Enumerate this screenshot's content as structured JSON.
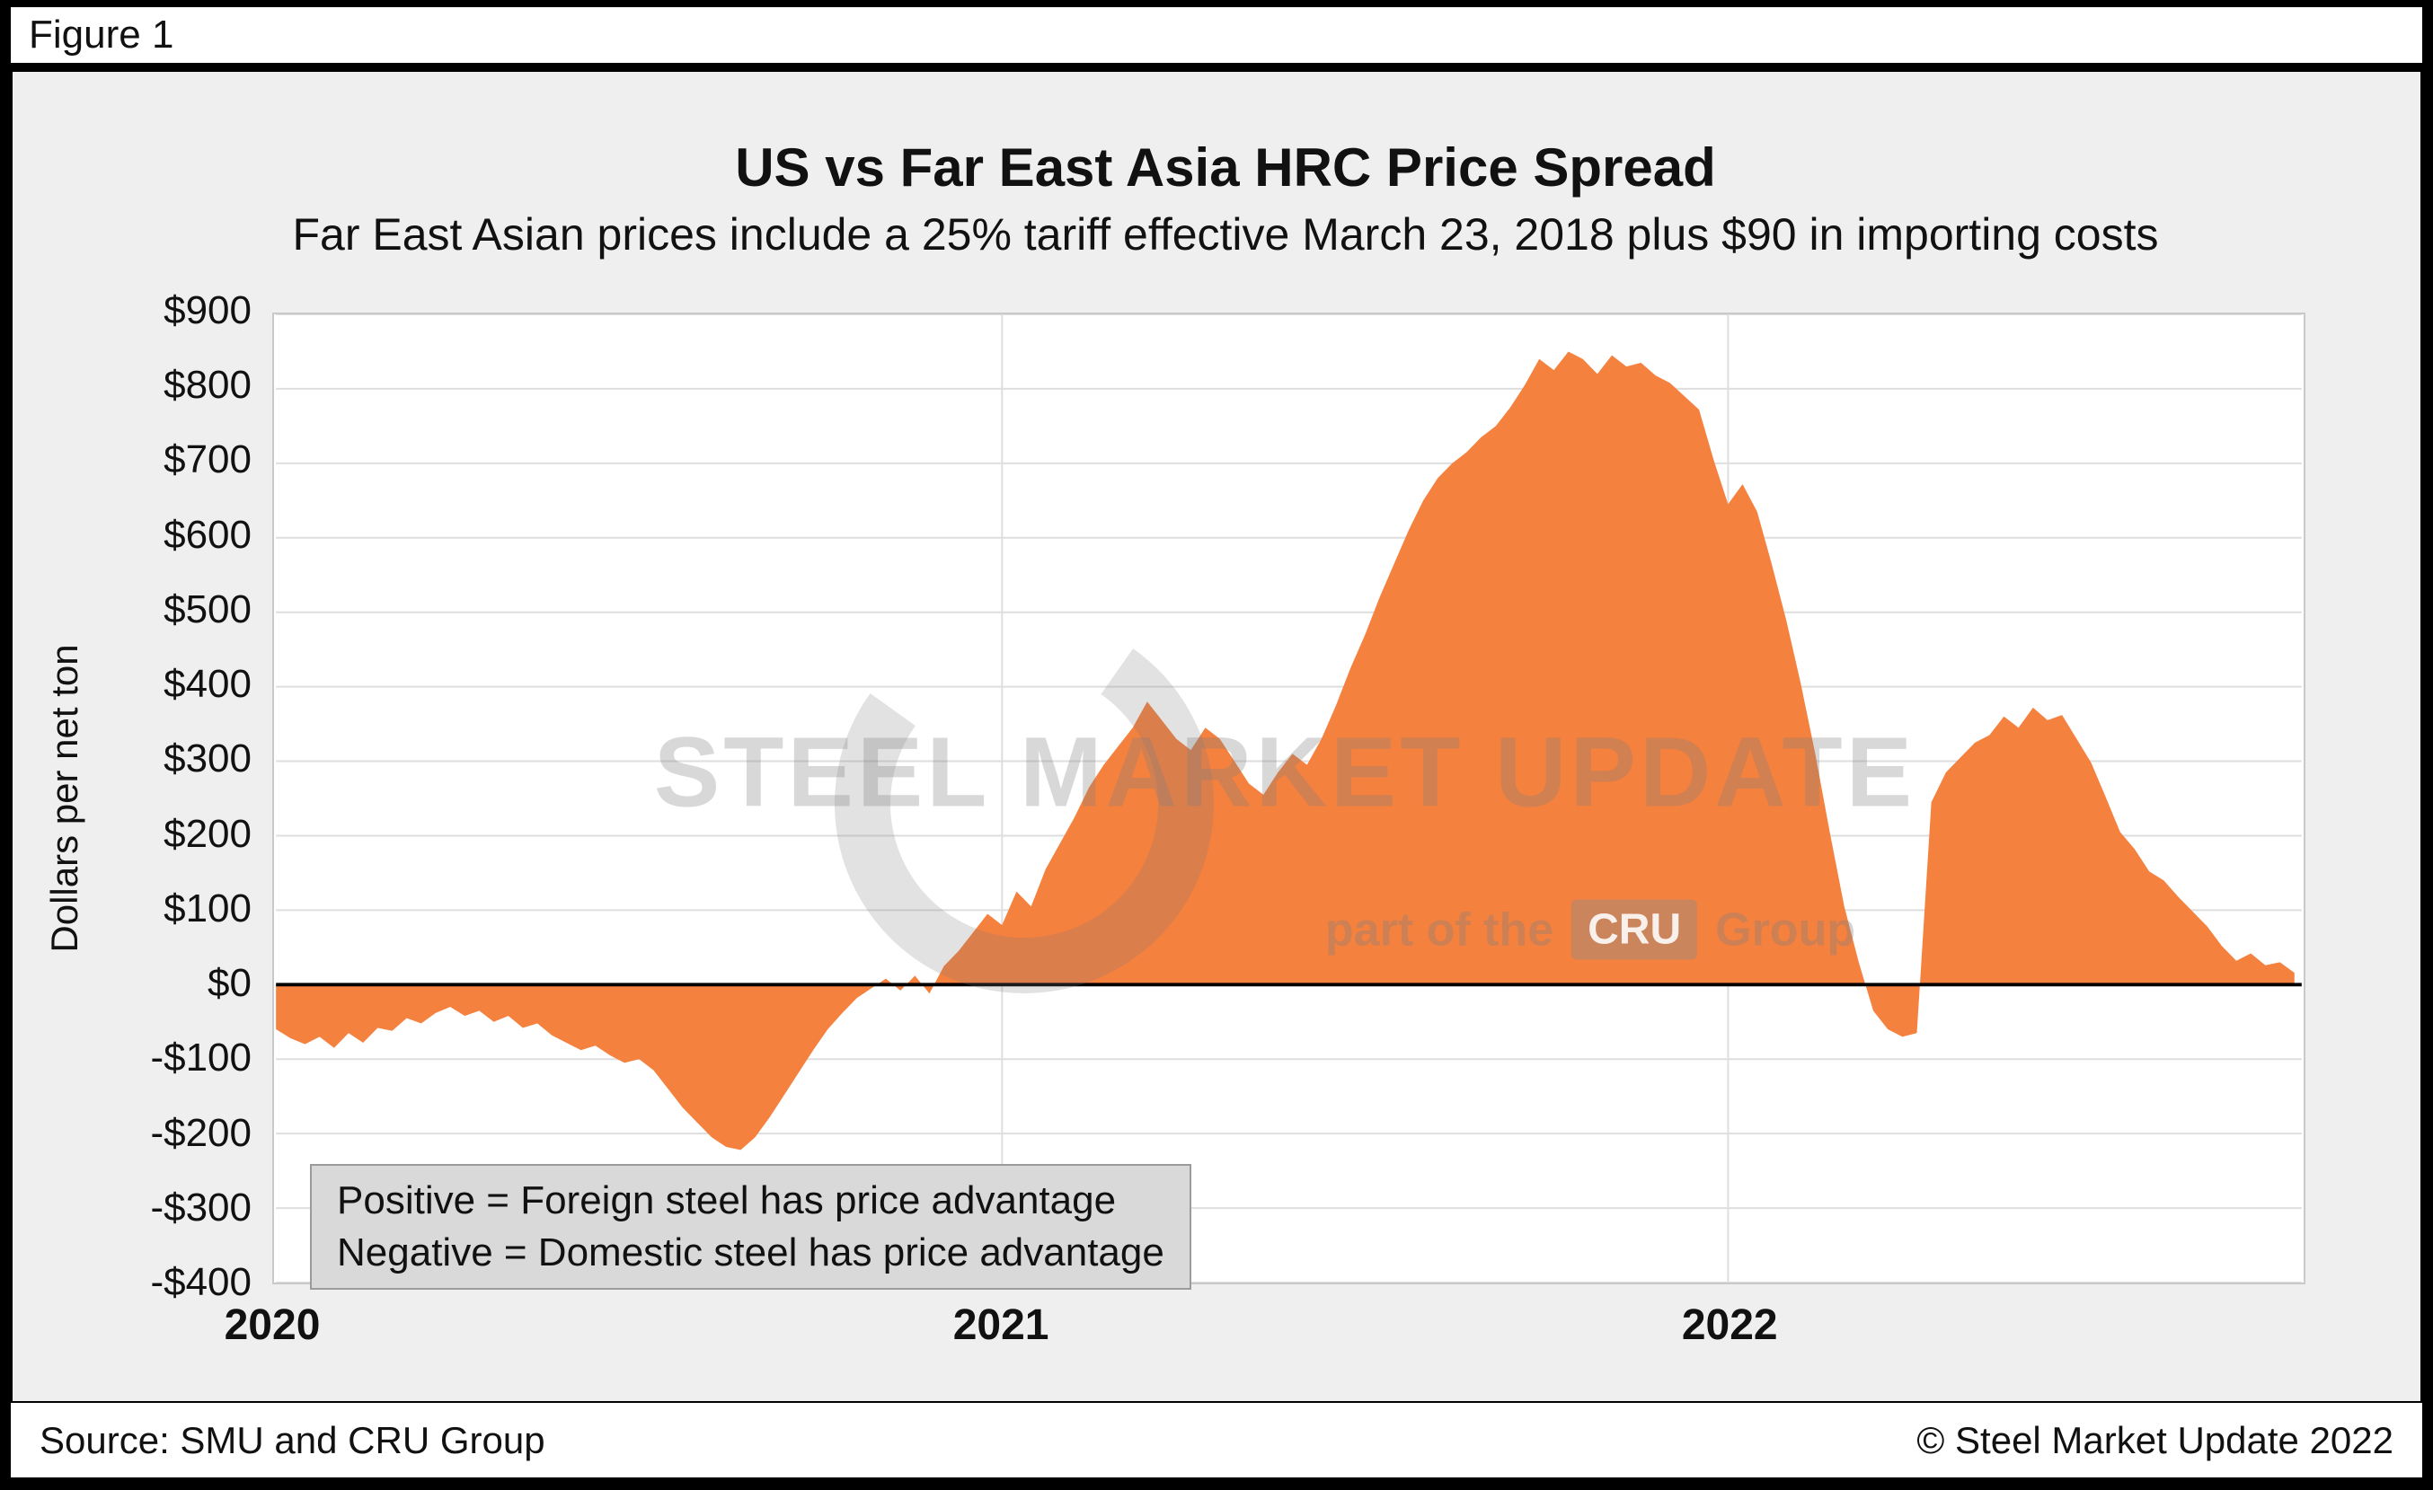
{
  "figure_label": "Figure 1",
  "chart_data": {
    "type": "area",
    "title": "US vs Far East Asia HRC Price Spread",
    "subtitle": "Far East Asian prices include a 25% tariff effective March 23, 2018 plus $90 in importing costs",
    "ylabel": "Dollars per net ton",
    "xlim": [
      2020.0,
      2022.79
    ],
    "ylim": [
      -400,
      900
    ],
    "grid": true,
    "series_color": "#F5813F",
    "grid_color": "#DEDEDE",
    "zero_line_color": "#000000",
    "plot_bg": "#FFFFFF",
    "panel_bg": "#EFEFEF",
    "y_ticks": [
      {
        "label": "$900",
        "value": 900
      },
      {
        "label": "$800",
        "value": 800
      },
      {
        "label": "$700",
        "value": 700
      },
      {
        "label": "$600",
        "value": 600
      },
      {
        "label": "$500",
        "value": 500
      },
      {
        "label": "$400",
        "value": 400
      },
      {
        "label": "$300",
        "value": 300
      },
      {
        "label": "$200",
        "value": 200
      },
      {
        "label": "$100",
        "value": 100
      },
      {
        "label": "$0",
        "value": 0
      },
      {
        "label": "-$100",
        "value": -100
      },
      {
        "label": "-$200",
        "value": -200
      },
      {
        "label": "-$300",
        "value": -300
      },
      {
        "label": "-$400",
        "value": -400
      }
    ],
    "x_ticks": [
      {
        "label": "2020",
        "value": 2020
      },
      {
        "label": "2021",
        "value": 2021
      },
      {
        "label": "2022",
        "value": 2022
      }
    ],
    "points": [
      [
        2020.0,
        -60
      ],
      [
        2020.02,
        -72
      ],
      [
        2020.04,
        -80
      ],
      [
        2020.06,
        -70
      ],
      [
        2020.08,
        -85
      ],
      [
        2020.1,
        -65
      ],
      [
        2020.12,
        -78
      ],
      [
        2020.14,
        -58
      ],
      [
        2020.16,
        -62
      ],
      [
        2020.18,
        -45
      ],
      [
        2020.2,
        -52
      ],
      [
        2020.22,
        -38
      ],
      [
        2020.24,
        -30
      ],
      [
        2020.26,
        -42
      ],
      [
        2020.28,
        -35
      ],
      [
        2020.3,
        -50
      ],
      [
        2020.32,
        -42
      ],
      [
        2020.34,
        -58
      ],
      [
        2020.36,
        -52
      ],
      [
        2020.38,
        -68
      ],
      [
        2020.4,
        -78
      ],
      [
        2020.42,
        -88
      ],
      [
        2020.44,
        -82
      ],
      [
        2020.46,
        -95
      ],
      [
        2020.48,
        -105
      ],
      [
        2020.5,
        -100
      ],
      [
        2020.52,
        -115
      ],
      [
        2020.54,
        -140
      ],
      [
        2020.56,
        -165
      ],
      [
        2020.58,
        -185
      ],
      [
        2020.6,
        -205
      ],
      [
        2020.62,
        -218
      ],
      [
        2020.64,
        -222
      ],
      [
        2020.66,
        -205
      ],
      [
        2020.68,
        -178
      ],
      [
        2020.7,
        -148
      ],
      [
        2020.72,
        -118
      ],
      [
        2020.74,
        -88
      ],
      [
        2020.76,
        -60
      ],
      [
        2020.78,
        -38
      ],
      [
        2020.8,
        -18
      ],
      [
        2020.82,
        -5
      ],
      [
        2020.84,
        8
      ],
      [
        2020.86,
        -8
      ],
      [
        2020.88,
        12
      ],
      [
        2020.9,
        -12
      ],
      [
        2020.92,
        25
      ],
      [
        2020.94,
        45
      ],
      [
        2020.96,
        70
      ],
      [
        2020.98,
        95
      ],
      [
        2021.0,
        80
      ],
      [
        2021.02,
        125
      ],
      [
        2021.04,
        105
      ],
      [
        2021.06,
        155
      ],
      [
        2021.08,
        190
      ],
      [
        2021.1,
        225
      ],
      [
        2021.12,
        265
      ],
      [
        2021.14,
        295
      ],
      [
        2021.16,
        320
      ],
      [
        2021.18,
        345
      ],
      [
        2021.2,
        380
      ],
      [
        2021.22,
        355
      ],
      [
        2021.24,
        330
      ],
      [
        2021.26,
        315
      ],
      [
        2021.28,
        345
      ],
      [
        2021.3,
        330
      ],
      [
        2021.32,
        300
      ],
      [
        2021.34,
        270
      ],
      [
        2021.36,
        255
      ],
      [
        2021.38,
        285
      ],
      [
        2021.4,
        310
      ],
      [
        2021.42,
        295
      ],
      [
        2021.44,
        330
      ],
      [
        2021.46,
        375
      ],
      [
        2021.48,
        425
      ],
      [
        2021.5,
        470
      ],
      [
        2021.52,
        520
      ],
      [
        2021.54,
        565
      ],
      [
        2021.56,
        610
      ],
      [
        2021.58,
        650
      ],
      [
        2021.6,
        680
      ],
      [
        2021.62,
        700
      ],
      [
        2021.64,
        715
      ],
      [
        2021.66,
        735
      ],
      [
        2021.68,
        750
      ],
      [
        2021.7,
        775
      ],
      [
        2021.72,
        805
      ],
      [
        2021.74,
        840
      ],
      [
        2021.76,
        825
      ],
      [
        2021.78,
        850
      ],
      [
        2021.8,
        840
      ],
      [
        2021.82,
        820
      ],
      [
        2021.84,
        845
      ],
      [
        2021.86,
        830
      ],
      [
        2021.88,
        835
      ],
      [
        2021.9,
        818
      ],
      [
        2021.92,
        808
      ],
      [
        2021.94,
        790
      ],
      [
        2021.96,
        772
      ],
      [
        2021.98,
        705
      ],
      [
        2022.0,
        645
      ],
      [
        2022.02,
        672
      ],
      [
        2022.04,
        635
      ],
      [
        2022.06,
        565
      ],
      [
        2022.08,
        490
      ],
      [
        2022.1,
        405
      ],
      [
        2022.12,
        310
      ],
      [
        2022.14,
        205
      ],
      [
        2022.16,
        105
      ],
      [
        2022.18,
        30
      ],
      [
        2022.2,
        -35
      ],
      [
        2022.22,
        -60
      ],
      [
        2022.24,
        -70
      ],
      [
        2022.26,
        -65
      ],
      [
        2022.28,
        245
      ],
      [
        2022.3,
        285
      ],
      [
        2022.32,
        305
      ],
      [
        2022.34,
        325
      ],
      [
        2022.36,
        335
      ],
      [
        2022.38,
        360
      ],
      [
        2022.4,
        345
      ],
      [
        2022.42,
        372
      ],
      [
        2022.44,
        355
      ],
      [
        2022.46,
        362
      ],
      [
        2022.48,
        330
      ],
      [
        2022.5,
        298
      ],
      [
        2022.52,
        252
      ],
      [
        2022.54,
        205
      ],
      [
        2022.56,
        182
      ],
      [
        2022.58,
        152
      ],
      [
        2022.6,
        140
      ],
      [
        2022.62,
        118
      ],
      [
        2022.64,
        98
      ],
      [
        2022.66,
        78
      ],
      [
        2022.68,
        52
      ],
      [
        2022.7,
        32
      ],
      [
        2022.72,
        42
      ],
      [
        2022.74,
        26
      ],
      [
        2022.76,
        30
      ],
      [
        2022.78,
        16
      ]
    ]
  },
  "annotation": {
    "line1": "Positive = Foreign steel has price advantage",
    "line2": "Negative = Domestic steel has price advantage"
  },
  "watermark": {
    "text": "STEEL MARKET UPDATE",
    "part_prefix": "part of the",
    "cru_label": "CRU",
    "part_suffix": "Group"
  },
  "footer": {
    "source": "Source: SMU and CRU Group",
    "copyright": "© Steel Market Update 2022"
  }
}
